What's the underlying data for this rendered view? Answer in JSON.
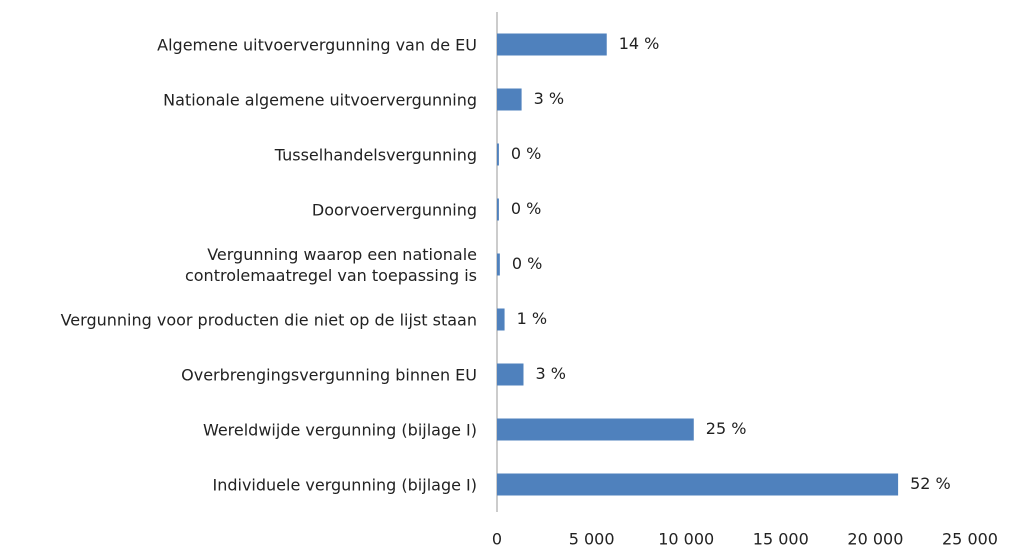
{
  "chart_data": {
    "type": "barh",
    "categories": [
      "Algemene uitvoervergunning van de EU",
      "Nationale algemene uitvoervergunning",
      "Tusselhandelsvergunning",
      "Doorvoervergunning",
      "Vergunning waarop een nationale\ncontrolemaatregel van toepassing is",
      "Vergunning voor producten die niet op de lijst staan",
      "Overbrengingsvergunning binnen EU",
      "Wereldwijde vergunning (bijlage I)",
      "Individuele vergunning (bijlage I)"
    ],
    "values": [
      5800,
      1300,
      100,
      100,
      150,
      400,
      1400,
      10400,
      21200
    ],
    "color": "#4f81bd",
    "shares": {
      "values": [
        14,
        3,
        0,
        0,
        0,
        1,
        3,
        25,
        52
      ],
      "labels": [
        "14 %",
        "3 %",
        "0 %",
        "0 %",
        "0 %",
        "1 %",
        "3 %",
        "25 %",
        "52 %"
      ]
    },
    "xlim": [
      0,
      25000
    ],
    "xticks": [
      0,
      {
        "value": 5000,
        "label": "5 000"
      },
      {
        "value": 10000,
        "label": "10 000"
      },
      {
        "value": 15000,
        "label": "15 000"
      },
      {
        "value": 20000,
        "label": "20 000"
      },
      {
        "value": 25000,
        "label": "25 000"
      }
    ]
  }
}
